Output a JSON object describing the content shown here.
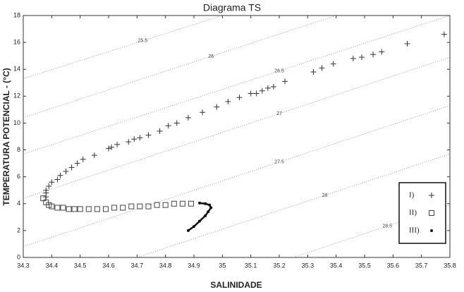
{
  "chart_data": {
    "type": "scatter",
    "title": "Diagrama TS",
    "x_label": "SALINIDADE",
    "y_label": "TEMPERATURA POTENCIAL - (°C)",
    "xlim": [
      34.3,
      35.8
    ],
    "ylim": [
      0,
      18
    ],
    "xticks": [
      34.3,
      34.4,
      34.5,
      34.6,
      34.7,
      34.8,
      34.9,
      35,
      35.1,
      35.2,
      35.3,
      35.4,
      35.5,
      35.6,
      35.7,
      35.8
    ],
    "yticks": [
      0,
      2,
      4,
      6,
      8,
      10,
      12,
      14,
      16,
      18
    ],
    "legend": "lower right",
    "isopycnals": [
      {
        "label": "25.5",
        "x": [
          34.3,
          35.0
        ],
        "y": [
          13.3,
          18
        ]
      },
      {
        "label": "26",
        "x": [
          34.3,
          35.4
        ],
        "y": [
          10.4,
          18
        ]
      },
      {
        "label": "26.5",
        "x": [
          34.3,
          35.8
        ],
        "y": [
          7.7,
          18
        ]
      },
      {
        "label": "27",
        "x": [
          34.3,
          35.8
        ],
        "y": [
          4.4,
          14.9
        ]
      },
      {
        "label": "27.5",
        "x": [
          34.3,
          35.8
        ],
        "y": [
          0.8,
          11.3
        ]
      },
      {
        "label": "28",
        "x": [
          34.7,
          35.8
        ],
        "y": [
          0,
          7.7
        ]
      },
      {
        "label": "28.5",
        "x": [
          35.25,
          35.8
        ],
        "y": [
          0,
          3.9
        ]
      }
    ],
    "series": [
      {
        "name": "I)",
        "marker": "plus",
        "color": "#333333",
        "x": [
          35.78,
          35.65,
          35.56,
          35.53,
          35.49,
          35.46,
          35.39,
          35.35,
          35.32,
          35.22,
          35.18,
          35.16,
          35.14,
          35.12,
          35.1,
          35.06,
          35.02,
          34.98,
          34.93,
          34.88,
          34.84,
          34.81,
          34.78,
          34.74,
          34.71,
          34.69,
          34.67,
          34.63,
          34.61,
          34.6,
          34.55,
          34.51,
          34.49,
          34.47,
          34.45,
          34.43,
          34.42,
          34.4,
          34.39,
          34.38,
          34.38,
          34.38
        ],
        "values": [
          16.6,
          15.9,
          15.3,
          15.1,
          14.9,
          14.8,
          14.4,
          14.1,
          13.8,
          13.1,
          12.7,
          12.6,
          12.4,
          12.2,
          12.2,
          11.9,
          11.6,
          11.2,
          10.8,
          10.4,
          10.0,
          9.8,
          9.4,
          9.1,
          8.9,
          8.8,
          8.6,
          8.4,
          8.2,
          8.1,
          7.6,
          7.3,
          7.0,
          6.7,
          6.4,
          6.1,
          5.8,
          5.6,
          5.3,
          5.0,
          4.8,
          4.5
        ]
      },
      {
        "name": "II)",
        "marker": "square",
        "color": "#444444",
        "x": [
          34.37,
          34.38,
          34.39,
          34.4,
          34.42,
          34.44,
          34.46,
          34.48,
          34.5,
          34.53,
          34.56,
          34.59,
          34.62,
          34.65,
          34.68,
          34.71,
          34.74,
          34.77,
          34.8,
          34.83,
          34.86,
          34.89
        ],
        "values": [
          4.4,
          4.1,
          3.9,
          3.8,
          3.7,
          3.7,
          3.6,
          3.6,
          3.6,
          3.6,
          3.6,
          3.6,
          3.7,
          3.7,
          3.8,
          3.8,
          3.8,
          3.9,
          3.9,
          4.0,
          4.0,
          4.0
        ]
      },
      {
        "name": "III)",
        "marker": "star",
        "color": "#111111",
        "x": [
          34.88,
          34.9,
          34.92,
          34.94,
          34.95,
          34.96,
          34.955,
          34.94,
          34.92
        ],
        "values": [
          2.0,
          2.3,
          2.7,
          3.1,
          3.4,
          3.7,
          3.9,
          4.0,
          4.05
        ]
      }
    ]
  }
}
